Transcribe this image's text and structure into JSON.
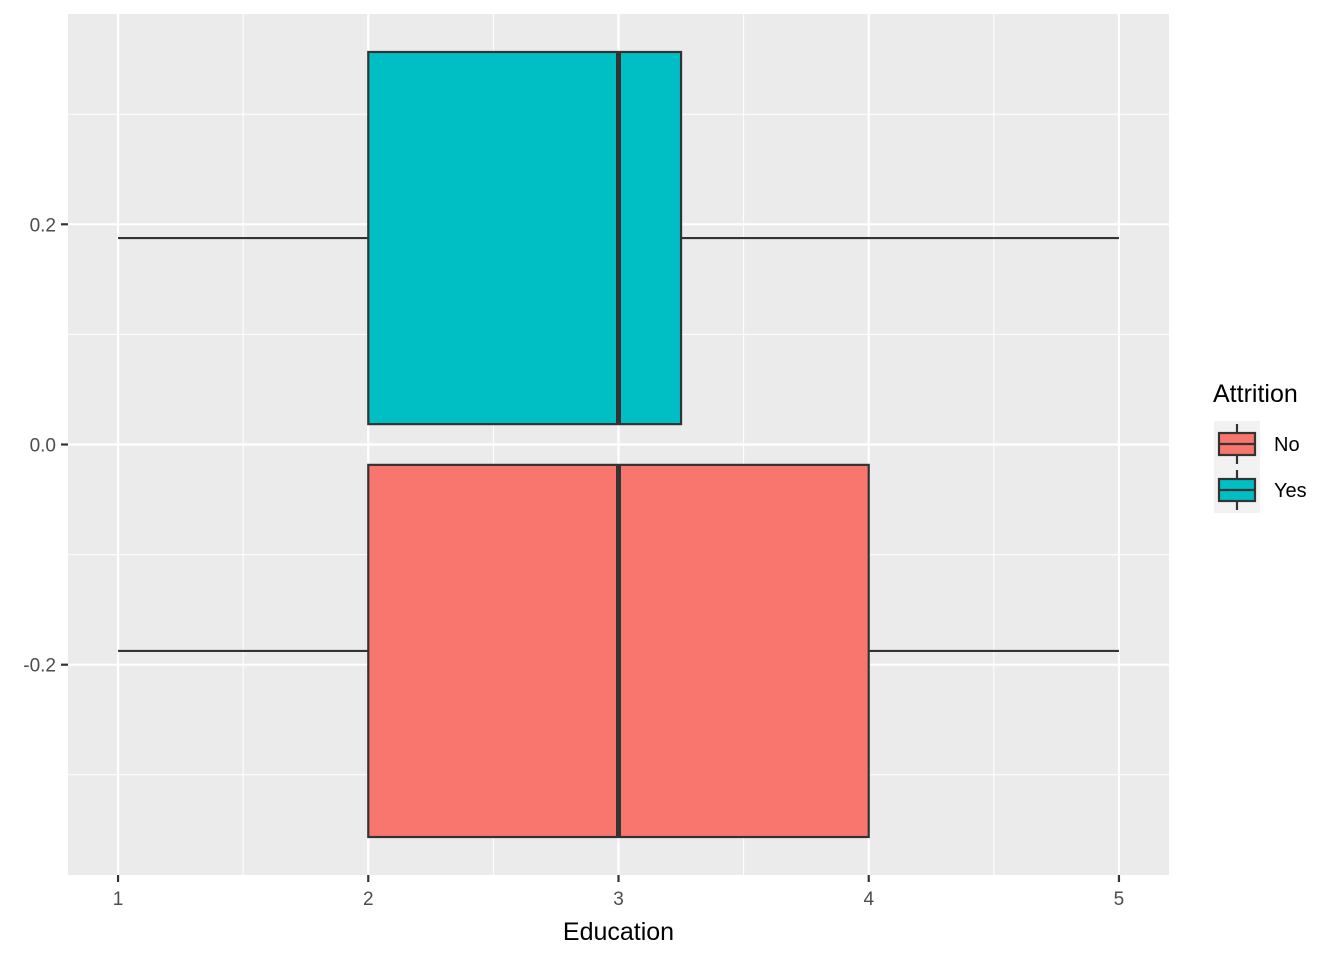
{
  "chart_data": {
    "type": "boxplot",
    "orientation": "horizontal",
    "xlabel": "Education",
    "ylabel": "",
    "xlim": [
      0.8,
      5.2
    ],
    "ylim": [
      -0.391,
      0.391
    ],
    "x_ticks": [
      1,
      2,
      3,
      4,
      5
    ],
    "x_tick_labels": [
      "1",
      "2",
      "3",
      "4",
      "5"
    ],
    "y_ticks": [
      -0.2,
      0.0,
      0.2
    ],
    "y_tick_labels": [
      "-0.2",
      "0.0",
      "0.2"
    ],
    "grid": true,
    "legend": {
      "title": "Attrition",
      "position": "right"
    },
    "series": [
      {
        "name": "No",
        "color": "#F8766D",
        "y_center": -0.1875,
        "box_halfwidth": 0.169,
        "min": 1,
        "q1": 2,
        "median": 3,
        "q3": 4,
        "max": 5
      },
      {
        "name": "Yes",
        "color": "#00BFC4",
        "y_center": 0.1875,
        "box_halfwidth": 0.169,
        "min": 1,
        "q1": 2,
        "median": 3,
        "q3": 3.25,
        "max": 5
      }
    ]
  }
}
